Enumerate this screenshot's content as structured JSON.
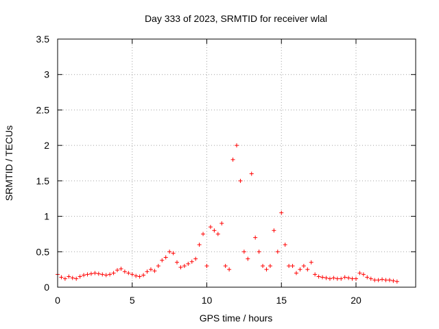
{
  "chart_data": {
    "type": "scatter",
    "title": "Day 333 of 2023, SRMTID for receiver wlal",
    "xlabel": "GPS time / hours",
    "ylabel": "SRMTID / TECUs",
    "xlim": [
      0,
      24
    ],
    "ylim": [
      0,
      3.5
    ],
    "x_ticks": [
      0,
      5,
      10,
      15,
      20
    ],
    "x_tick_labels": [
      "0",
      "5",
      "10",
      "15",
      "20"
    ],
    "y_ticks": [
      0,
      0.5,
      1,
      1.5,
      2,
      2.5,
      3,
      3.5
    ],
    "y_tick_labels": [
      "0",
      "0.5",
      "1",
      "1.5",
      "2",
      "2.5",
      "3",
      "3.5"
    ],
    "grid": true,
    "marker": "+",
    "series": [
      {
        "name": "SRMTID",
        "color": "#ff0000",
        "x": [
          0.0,
          0.25,
          0.5,
          0.75,
          1.0,
          1.25,
          1.5,
          1.75,
          2.0,
          2.25,
          2.5,
          2.75,
          3.0,
          3.25,
          3.5,
          3.75,
          4.0,
          4.25,
          4.5,
          4.75,
          5.0,
          5.25,
          5.5,
          5.75,
          6.0,
          6.25,
          6.5,
          6.75,
          7.0,
          7.25,
          7.5,
          7.75,
          8.0,
          8.25,
          8.5,
          8.75,
          9.0,
          9.25,
          9.5,
          9.75,
          10.0,
          10.25,
          10.5,
          10.75,
          11.0,
          11.25,
          11.5,
          11.75,
          12.0,
          12.25,
          12.5,
          12.75,
          13.0,
          13.25,
          13.5,
          13.75,
          14.0,
          14.25,
          14.5,
          14.75,
          15.0,
          15.25,
          15.5,
          15.75,
          16.0,
          16.25,
          16.5,
          16.75,
          17.0,
          17.25,
          17.5,
          17.75,
          18.0,
          18.25,
          18.5,
          18.75,
          19.0,
          19.25,
          19.5,
          19.75,
          20.0,
          20.25,
          20.5,
          20.75,
          21.0,
          21.25,
          21.5,
          21.75,
          22.0,
          22.25,
          22.5,
          22.75
        ],
        "y": [
          0.18,
          0.14,
          0.12,
          0.15,
          0.13,
          0.12,
          0.15,
          0.17,
          0.18,
          0.19,
          0.2,
          0.19,
          0.18,
          0.17,
          0.18,
          0.2,
          0.24,
          0.26,
          0.22,
          0.2,
          0.18,
          0.16,
          0.15,
          0.17,
          0.22,
          0.25,
          0.23,
          0.3,
          0.38,
          0.42,
          0.5,
          0.48,
          0.35,
          0.28,
          0.3,
          0.33,
          0.36,
          0.4,
          0.6,
          0.75,
          0.3,
          0.85,
          0.8,
          0.75,
          0.9,
          0.3,
          0.25,
          1.8,
          2.0,
          1.5,
          0.5,
          0.4,
          1.6,
          0.7,
          0.5,
          0.3,
          0.25,
          0.3,
          0.8,
          0.5,
          1.05,
          0.6,
          0.3,
          0.3,
          0.2,
          0.25,
          0.3,
          0.25,
          0.35,
          0.18,
          0.15,
          0.14,
          0.13,
          0.12,
          0.13,
          0.12,
          0.12,
          0.14,
          0.13,
          0.12,
          0.12,
          0.2,
          0.18,
          0.14,
          0.12,
          0.1,
          0.1,
          0.11,
          0.1,
          0.1,
          0.09,
          0.08
        ]
      }
    ]
  }
}
